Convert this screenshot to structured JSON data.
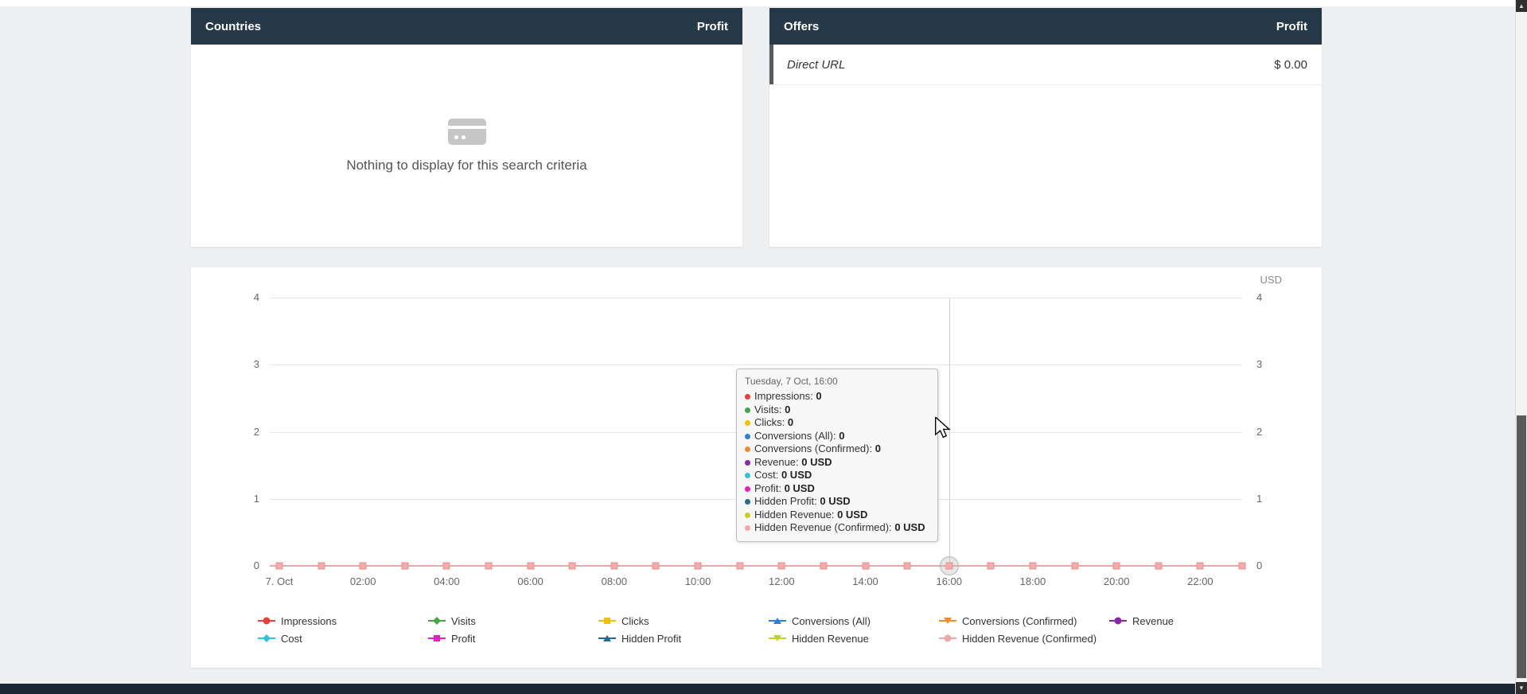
{
  "panels": {
    "countries": {
      "title": "Countries",
      "metric_label": "Profit",
      "empty_message": "Nothing to display for this search criteria",
      "empty_icon": "card-icon"
    },
    "offers": {
      "title": "Offers",
      "metric_label": "Profit",
      "rows": [
        {
          "label": "Direct URL",
          "value": "$ 0.00"
        }
      ]
    }
  },
  "chart_data": {
    "type": "line",
    "title": "",
    "currency_axis_label": "USD",
    "y_axis": {
      "ticks": [
        0,
        1,
        2,
        3,
        4
      ],
      "min": 0,
      "max": 4,
      "grid": true,
      "labels_both_sides": true
    },
    "x_axis": {
      "tick_labels": [
        "7. Oct",
        "02:00",
        "04:00",
        "06:00",
        "08:00",
        "10:00",
        "12:00",
        "14:00",
        "16:00",
        "18:00",
        "20:00",
        "22:00"
      ],
      "points_hours": [
        0,
        1,
        2,
        3,
        4,
        5,
        6,
        7,
        8,
        9,
        10,
        11,
        12,
        13,
        14,
        15,
        16,
        17,
        18,
        19,
        20,
        21,
        22,
        23
      ]
    },
    "series": [
      {
        "name": "Impressions",
        "color": "#e8413c",
        "marker": "circle",
        "values": [
          0,
          0,
          0,
          0,
          0,
          0,
          0,
          0,
          0,
          0,
          0,
          0,
          0,
          0,
          0,
          0,
          0,
          0,
          0,
          0,
          0,
          0,
          0,
          0
        ]
      },
      {
        "name": "Visits",
        "color": "#47a447",
        "marker": "diamond",
        "values": [
          0,
          0,
          0,
          0,
          0,
          0,
          0,
          0,
          0,
          0,
          0,
          0,
          0,
          0,
          0,
          0,
          0,
          0,
          0,
          0,
          0,
          0,
          0,
          0
        ]
      },
      {
        "name": "Clicks",
        "color": "#f0c100",
        "marker": "square",
        "values": [
          0,
          0,
          0,
          0,
          0,
          0,
          0,
          0,
          0,
          0,
          0,
          0,
          0,
          0,
          0,
          0,
          0,
          0,
          0,
          0,
          0,
          0,
          0,
          0
        ]
      },
      {
        "name": "Conversions (All)",
        "color": "#2f7fd9",
        "marker": "tri-up",
        "values": [
          0,
          0,
          0,
          0,
          0,
          0,
          0,
          0,
          0,
          0,
          0,
          0,
          0,
          0,
          0,
          0,
          0,
          0,
          0,
          0,
          0,
          0,
          0,
          0
        ]
      },
      {
        "name": "Conversions (Confirmed)",
        "color": "#ef8d2e",
        "marker": "tri-down",
        "values": [
          0,
          0,
          0,
          0,
          0,
          0,
          0,
          0,
          0,
          0,
          0,
          0,
          0,
          0,
          0,
          0,
          0,
          0,
          0,
          0,
          0,
          0,
          0,
          0
        ]
      },
      {
        "name": "Revenue",
        "color": "#8e24aa",
        "marker": "circle",
        "values": [
          0,
          0,
          0,
          0,
          0,
          0,
          0,
          0,
          0,
          0,
          0,
          0,
          0,
          0,
          0,
          0,
          0,
          0,
          0,
          0,
          0,
          0,
          0,
          0
        ]
      },
      {
        "name": "Cost",
        "color": "#2bc4e2",
        "marker": "diamond",
        "values": [
          0,
          0,
          0,
          0,
          0,
          0,
          0,
          0,
          0,
          0,
          0,
          0,
          0,
          0,
          0,
          0,
          0,
          0,
          0,
          0,
          0,
          0,
          0,
          0
        ]
      },
      {
        "name": "Profit",
        "color": "#e91ec0",
        "marker": "square",
        "values": [
          0,
          0,
          0,
          0,
          0,
          0,
          0,
          0,
          0,
          0,
          0,
          0,
          0,
          0,
          0,
          0,
          0,
          0,
          0,
          0,
          0,
          0,
          0,
          0
        ]
      },
      {
        "name": "Hidden Profit",
        "color": "#1f6d8f",
        "marker": "tri-up",
        "values": [
          0,
          0,
          0,
          0,
          0,
          0,
          0,
          0,
          0,
          0,
          0,
          0,
          0,
          0,
          0,
          0,
          0,
          0,
          0,
          0,
          0,
          0,
          0,
          0
        ]
      },
      {
        "name": "Hidden Revenue",
        "color": "#c3d21f",
        "marker": "tri-down",
        "values": [
          0,
          0,
          0,
          0,
          0,
          0,
          0,
          0,
          0,
          0,
          0,
          0,
          0,
          0,
          0,
          0,
          0,
          0,
          0,
          0,
          0,
          0,
          0,
          0
        ]
      },
      {
        "name": "Hidden Revenue (Confirmed)",
        "color": "#f3a6a6",
        "marker": "circle",
        "values": [
          0,
          0,
          0,
          0,
          0,
          0,
          0,
          0,
          0,
          0,
          0,
          0,
          0,
          0,
          0,
          0,
          0,
          0,
          0,
          0,
          0,
          0,
          0,
          0
        ]
      }
    ],
    "visible_series_style": {
      "line_color": "#f2a3a3",
      "marker_fill": "#f5abab",
      "marker_border": "#ec8f8f",
      "marker_shape": "square"
    },
    "hover": {
      "point_hour": 16,
      "halo": true,
      "crosshair": true
    },
    "tooltip": {
      "title": "Tuesday, 7 Oct, 16:00",
      "rows": [
        {
          "name": "Impressions",
          "value": "0"
        },
        {
          "name": "Visits",
          "value": "0"
        },
        {
          "name": "Clicks",
          "value": "0"
        },
        {
          "name": "Conversions (All)",
          "value": "0"
        },
        {
          "name": "Conversions (Confirmed)",
          "value": "0"
        },
        {
          "name": "Revenue",
          "value": "0 USD"
        },
        {
          "name": "Cost",
          "value": "0 USD"
        },
        {
          "name": "Profit",
          "value": "0 USD"
        },
        {
          "name": "Hidden Profit",
          "value": "0 USD"
        },
        {
          "name": "Hidden Revenue",
          "value": "0 USD"
        },
        {
          "name": "Hidden Revenue (Confirmed)",
          "value": "0 USD"
        }
      ]
    },
    "legend": {
      "position": "bottom",
      "rows": [
        [
          "Impressions",
          "Visits",
          "Clicks",
          "Conversions (All)",
          "Conversions (Confirmed)",
          "Revenue"
        ],
        [
          "Cost",
          "Profit",
          "Hidden Profit",
          "Hidden Revenue",
          "Hidden Revenue (Confirmed)"
        ]
      ]
    }
  }
}
